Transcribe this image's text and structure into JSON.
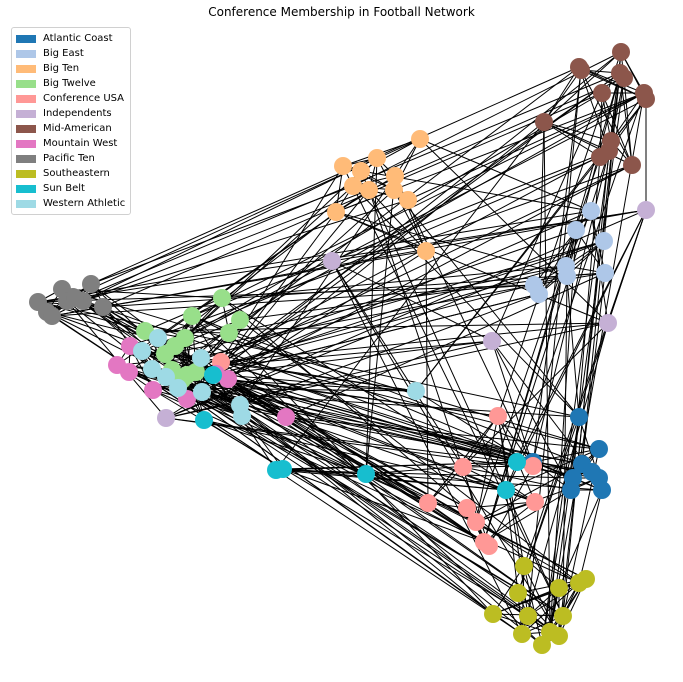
{
  "chart_data": {
    "type": "network",
    "title": "Conference Membership in Football Network",
    "legend_location": "top-left",
    "conferences": [
      {
        "name": "Atlantic Coast",
        "color": "#1f77b4"
      },
      {
        "name": "Big East",
        "color": "#aec7e8"
      },
      {
        "name": "Big Ten",
        "color": "#ffbb78"
      },
      {
        "name": "Big Twelve",
        "color": "#98df8a"
      },
      {
        "name": "Conference USA",
        "color": "#ff9896"
      },
      {
        "name": "Independents",
        "color": "#c5b0d5"
      },
      {
        "name": "Mid-American",
        "color": "#8c564b"
      },
      {
        "name": "Mountain West",
        "color": "#e377c2"
      },
      {
        "name": "Pacific Ten",
        "color": "#7f7f7f"
      },
      {
        "name": "Southeastern",
        "color": "#bcbd22"
      },
      {
        "name": "Sun Belt",
        "color": "#17becf"
      },
      {
        "name": "Western Athletic",
        "color": "#9edae5"
      }
    ],
    "node_count": 115,
    "nodes_per_conference": [
      9,
      8,
      11,
      12,
      10,
      5,
      13,
      8,
      10,
      12,
      7,
      10
    ]
  }
}
